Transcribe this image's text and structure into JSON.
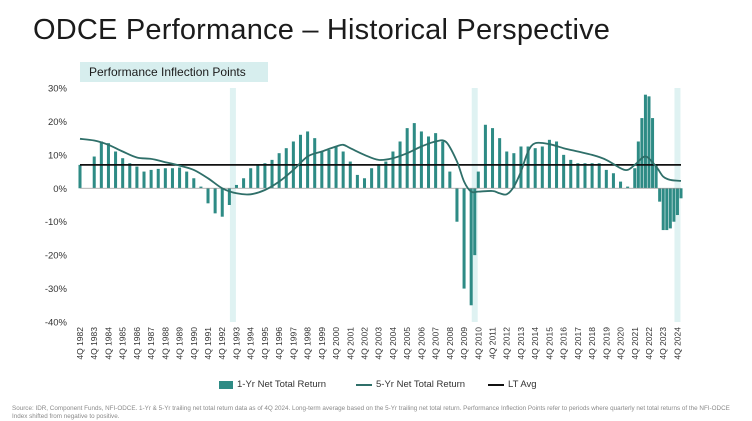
{
  "title": "ODCE Performance – Historical Perspective",
  "subtitle": "Performance Inflection Points",
  "legend": {
    "bars": "1-Yr Net Total Return",
    "line": "5-Yr Net Total Return",
    "avg": "LT Avg"
  },
  "source": "Source: IDR, Component Funds, NFI-ODCE. 1-Yr & 5-Yr trailing net total return data as of 4Q 2024. Long-term average based on the 5-Yr trailing net total return. Performance Inflection Points refer to periods where quarterly net total returns of the NFI-ODCE Index shifted from negative to positive.",
  "chart_data": {
    "type": "bar",
    "x_start_year": 1982,
    "x_end_year": 2024,
    "xlabels": [
      "4Q 1982",
      "4Q 1983",
      "4Q 1984",
      "4Q 1985",
      "4Q 1986",
      "4Q 1987",
      "4Q 1988",
      "4Q 1989",
      "4Q 1990",
      "4Q 1991",
      "4Q 1992",
      "4Q 1993",
      "4Q 1994",
      "4Q 1995",
      "4Q 1996",
      "4Q 1997",
      "4Q 1998",
      "4Q 1999",
      "4Q 2000",
      "4Q 2001",
      "4Q 2002",
      "4Q 2003",
      "4Q 2004",
      "4Q 2005",
      "4Q 2006",
      "4Q 2007",
      "4Q 2008",
      "4Q 2009",
      "4Q 2010",
      "4Q 2011",
      "4Q 2012",
      "4Q 2013",
      "4Q 2014",
      "4Q 2015",
      "4Q 2016",
      "4Q 2017",
      "4Q 2018",
      "4Q 2019",
      "4Q 2020",
      "4Q 2021",
      "4Q 2022",
      "4Q 2023",
      "4Q 2024"
    ],
    "yticks": [
      "30%",
      "20%",
      "10%",
      "0%",
      "-10%",
      "-20%",
      "-30%",
      "-40%"
    ],
    "ylim": [
      -40,
      30
    ],
    "lt_avg": 7,
    "highlight_years": [
      1992.75,
      2009.75,
      2024.0
    ],
    "series": [
      {
        "name": "1-Yr Net Total Return",
        "kind": "bar",
        "color": "#2e8b85",
        "points": [
          [
            1982,
            7
          ],
          [
            1983,
            9.5
          ],
          [
            1983.5,
            14
          ],
          [
            1984,
            13.5
          ],
          [
            1984.5,
            11
          ],
          [
            1985,
            9
          ],
          [
            1985.5,
            7.5
          ],
          [
            1986,
            6.5
          ],
          [
            1986.5,
            5
          ],
          [
            1987,
            5.5
          ],
          [
            1987.5,
            5.8
          ],
          [
            1988,
            6
          ],
          [
            1988.5,
            6
          ],
          [
            1989,
            6.2
          ],
          [
            1989.5,
            5
          ],
          [
            1990,
            3
          ],
          [
            1990.5,
            0.5
          ],
          [
            1991,
            -4.5
          ],
          [
            1991.5,
            -7.5
          ],
          [
            1992,
            -8.5
          ],
          [
            1992.5,
            -5
          ],
          [
            1993,
            1
          ],
          [
            1993.5,
            3
          ],
          [
            1994,
            6
          ],
          [
            1994.5,
            7
          ],
          [
            1995,
            7.5
          ],
          [
            1995.5,
            8.5
          ],
          [
            1996,
            10.5
          ],
          [
            1996.5,
            12
          ],
          [
            1997,
            14
          ],
          [
            1997.5,
            16
          ],
          [
            1998,
            17
          ],
          [
            1998.5,
            15
          ],
          [
            1999,
            11
          ],
          [
            1999.5,
            11.5
          ],
          [
            2000,
            12.5
          ],
          [
            2000.5,
            11
          ],
          [
            2001,
            8
          ],
          [
            2001.5,
            4
          ],
          [
            2002,
            3
          ],
          [
            2002.5,
            6
          ],
          [
            2003,
            7
          ],
          [
            2003.5,
            8
          ],
          [
            2004,
            11
          ],
          [
            2004.5,
            14
          ],
          [
            2005,
            18
          ],
          [
            2005.5,
            19.5
          ],
          [
            2006,
            17
          ],
          [
            2006.5,
            15.5
          ],
          [
            2007,
            16.5
          ],
          [
            2007.5,
            14
          ],
          [
            2008,
            5
          ],
          [
            2008.5,
            -10
          ],
          [
            2009,
            -30
          ],
          [
            2009.5,
            -35
          ],
          [
            2009.75,
            -20
          ],
          [
            2010,
            5
          ],
          [
            2010.5,
            19
          ],
          [
            2011,
            18
          ],
          [
            2011.5,
            15
          ],
          [
            2012,
            11
          ],
          [
            2012.5,
            10.5
          ],
          [
            2013,
            12.5
          ],
          [
            2013.5,
            12.5
          ],
          [
            2014,
            12
          ],
          [
            2014.5,
            12.5
          ],
          [
            2015,
            14.5
          ],
          [
            2015.5,
            14
          ],
          [
            2016,
            10
          ],
          [
            2016.5,
            8.5
          ],
          [
            2017,
            7.5
          ],
          [
            2017.5,
            7.5
          ],
          [
            2018,
            7.5
          ],
          [
            2018.5,
            7.5
          ],
          [
            2019,
            5.5
          ],
          [
            2019.5,
            4.5
          ],
          [
            2020,
            2
          ],
          [
            2020.5,
            0.5
          ],
          [
            2021,
            6
          ],
          [
            2021.25,
            14
          ],
          [
            2021.5,
            21
          ],
          [
            2021.75,
            28
          ],
          [
            2022,
            27.5
          ],
          [
            2022.25,
            21
          ],
          [
            2022.5,
            7
          ],
          [
            2022.75,
            -4
          ],
          [
            2023,
            -12.5
          ],
          [
            2023.25,
            -12.5
          ],
          [
            2023.5,
            -12
          ],
          [
            2023.75,
            -10
          ],
          [
            2024,
            -8
          ],
          [
            2024.25,
            -3
          ]
        ]
      },
      {
        "name": "5-Yr Net Total Return",
        "kind": "line",
        "color": "#2f6f69",
        "points": [
          [
            1982,
            14.8
          ],
          [
            1983,
            14.3
          ],
          [
            1984,
            13
          ],
          [
            1985,
            11
          ],
          [
            1986,
            9.2
          ],
          [
            1987,
            8.8
          ],
          [
            1988,
            7.8
          ],
          [
            1989,
            6.8
          ],
          [
            1990,
            5.5
          ],
          [
            1991,
            3
          ],
          [
            1992,
            0
          ],
          [
            1993,
            -1.5
          ],
          [
            1994,
            -1.8
          ],
          [
            1995,
            -0.5
          ],
          [
            1996,
            2
          ],
          [
            1997,
            5.5
          ],
          [
            1998,
            9.5
          ],
          [
            1999,
            11
          ],
          [
            2000,
            12.5
          ],
          [
            2000.5,
            13
          ],
          [
            2001,
            12
          ],
          [
            2002,
            10
          ],
          [
            2003,
            8.5
          ],
          [
            2004,
            9
          ],
          [
            2005,
            10.5
          ],
          [
            2006,
            12.5
          ],
          [
            2007,
            14
          ],
          [
            2007.75,
            13.8
          ],
          [
            2008.5,
            8
          ],
          [
            2009,
            2
          ],
          [
            2009.5,
            -1
          ],
          [
            2010,
            -1
          ],
          [
            2011,
            -0.8
          ],
          [
            2011.5,
            -1.5
          ],
          [
            2012,
            -1.8
          ],
          [
            2012.5,
            0.5
          ],
          [
            2013,
            5
          ],
          [
            2013.5,
            11
          ],
          [
            2014,
            13.5
          ],
          [
            2015,
            13.2
          ],
          [
            2016,
            12
          ],
          [
            2017,
            11
          ],
          [
            2018,
            10
          ],
          [
            2019,
            8.5
          ],
          [
            2020,
            6
          ],
          [
            2020.5,
            5.5
          ],
          [
            2021,
            7
          ],
          [
            2021.75,
            9.5
          ],
          [
            2022.5,
            6.5
          ],
          [
            2023,
            3.5
          ],
          [
            2023.5,
            2.5
          ],
          [
            2024.25,
            2.2
          ]
        ]
      }
    ]
  }
}
